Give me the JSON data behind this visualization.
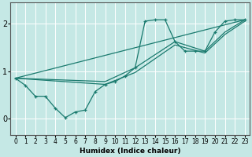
{
  "background_color": "#c5e8e5",
  "line_color": "#1a7a6e",
  "grid_color": "#ffffff",
  "xlabel": "Humidex (Indice chaleur)",
  "yticks": [
    0,
    1,
    2
  ],
  "xticks": [
    0,
    1,
    2,
    3,
    4,
    5,
    6,
    7,
    8,
    9,
    10,
    11,
    12,
    13,
    14,
    15,
    16,
    17,
    18,
    19,
    20,
    21,
    22,
    23
  ],
  "xlim": [
    -0.5,
    23.5
  ],
  "ylim": [
    -0.35,
    2.45
  ],
  "lines": [
    {
      "x": [
        0,
        1,
        2,
        3,
        4,
        5,
        6,
        7,
        8,
        9,
        10,
        11,
        12,
        13,
        14,
        15,
        16,
        17,
        18,
        19,
        20,
        21,
        22,
        23
      ],
      "y": [
        0.85,
        0.7,
        0.47,
        0.47,
        0.22,
        0.02,
        0.14,
        0.18,
        0.57,
        0.72,
        0.78,
        0.9,
        1.07,
        2.05,
        2.08,
        2.08,
        1.62,
        1.42,
        1.42,
        1.42,
        1.82,
        2.05,
        2.08,
        2.08
      ],
      "marker": "+"
    },
    {
      "x": [
        0,
        9,
        12,
        16,
        19,
        21,
        23
      ],
      "y": [
        0.85,
        0.78,
        1.07,
        1.62,
        1.42,
        1.82,
        2.08
      ],
      "marker": null
    },
    {
      "x": [
        0,
        9,
        12,
        16,
        19,
        21,
        23
      ],
      "y": [
        0.85,
        0.72,
        0.97,
        1.55,
        1.38,
        1.77,
        2.05
      ],
      "marker": null
    },
    {
      "x": [
        0,
        23
      ],
      "y": [
        0.85,
        2.08
      ],
      "marker": null
    }
  ]
}
